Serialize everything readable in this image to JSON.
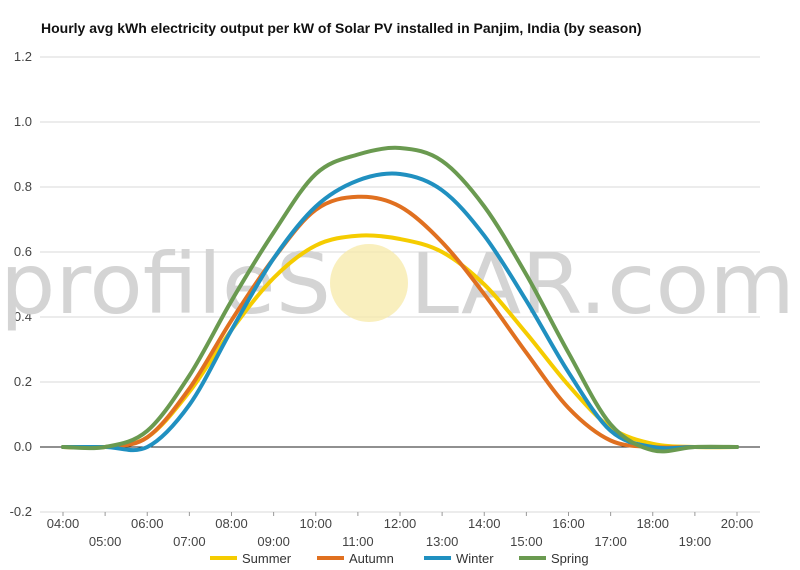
{
  "watermark": {
    "text_left": "profileS",
    "text_right": "LAR.com"
  },
  "chart_data": {
    "type": "line",
    "title": "Hourly avg kWh electricity output per kW of Solar PV installed in Panjim, India (by season)",
    "xlabel": "",
    "ylabel": "",
    "ylim": [
      -0.2,
      1.2
    ],
    "yticks": [
      "1.2",
      "1.0",
      "0.8",
      "0.6",
      "0.4",
      "0.2",
      "0.0",
      "-0.2"
    ],
    "ytick_values": [
      1.2,
      1.0,
      0.8,
      0.6,
      0.4,
      0.2,
      0.0,
      -0.2
    ],
    "x_hours": [
      4,
      5,
      6,
      7,
      8,
      9,
      10,
      11,
      12,
      13,
      14,
      15,
      16,
      17,
      18,
      19,
      20
    ],
    "x_tick_labels": [
      "04:00",
      "05:00",
      "06:00",
      "07:00",
      "08:00",
      "09:00",
      "10:00",
      "11:00",
      "12:00",
      "13:00",
      "14:00",
      "15:00",
      "16:00",
      "17:00",
      "18:00",
      "19:00",
      "20:00"
    ],
    "grid": true,
    "legend_position": "bottom",
    "series": [
      {
        "name": "Summer",
        "color": "#f5cc00",
        "values": [
          0.0,
          0.0,
          0.03,
          0.17,
          0.36,
          0.52,
          0.62,
          0.65,
          0.64,
          0.6,
          0.5,
          0.35,
          0.19,
          0.06,
          0.01,
          0.0,
          0.0
        ]
      },
      {
        "name": "Autumn",
        "color": "#e07020",
        "values": [
          0.0,
          0.0,
          0.03,
          0.18,
          0.39,
          0.58,
          0.73,
          0.77,
          0.74,
          0.63,
          0.47,
          0.29,
          0.12,
          0.02,
          0.0,
          0.0,
          0.0
        ]
      },
      {
        "name": "Winter",
        "color": "#2090c0",
        "values": [
          0.0,
          0.0,
          0.0,
          0.13,
          0.36,
          0.58,
          0.74,
          0.82,
          0.84,
          0.79,
          0.65,
          0.45,
          0.23,
          0.05,
          0.0,
          0.0,
          0.0
        ]
      },
      {
        "name": "Spring",
        "color": "#6a9a50",
        "values": [
          0.0,
          0.0,
          0.05,
          0.22,
          0.45,
          0.66,
          0.84,
          0.9,
          0.92,
          0.88,
          0.74,
          0.53,
          0.29,
          0.07,
          -0.01,
          0.0,
          0.0
        ]
      }
    ]
  }
}
